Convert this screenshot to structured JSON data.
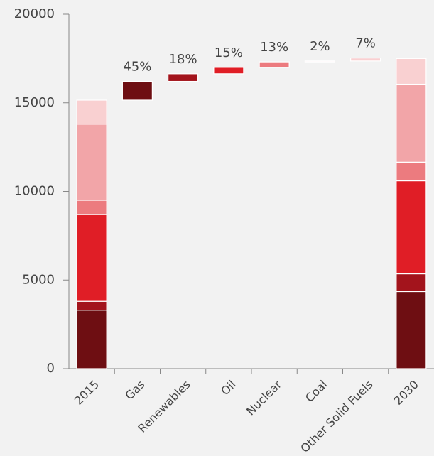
{
  "chart_data": {
    "type": "waterfall",
    "categories": [
      "2015",
      "Gas",
      "Renewables",
      "Oil",
      "Nuclear",
      "Coal",
      "Other Solid Fuels",
      "2030"
    ],
    "series": [
      {
        "color": "#6e0e12",
        "values": [
          3300,
          1060,
          null,
          null,
          null,
          null,
          null,
          4350
        ]
      },
      {
        "color": "#a3141c",
        "values": [
          500,
          null,
          430,
          null,
          null,
          null,
          null,
          1000
        ]
      },
      {
        "color": "#e01e26",
        "values": [
          4900,
          null,
          null,
          360,
          null,
          null,
          null,
          5250
        ]
      },
      {
        "color": "#ec7b7f",
        "values": [
          800,
          null,
          null,
          null,
          310,
          null,
          null,
          1050
        ]
      },
      {
        "color": "#f2a5a8",
        "values": [
          4300,
          null,
          null,
          null,
          null,
          50,
          null,
          4400
        ]
      },
      {
        "color": "#f9d0d1",
        "values": [
          1350,
          null,
          null,
          null,
          null,
          null,
          170,
          1450
        ]
      }
    ],
    "annotations": [
      null,
      "45%",
      "18%",
      "15%",
      "13%",
      "2%",
      "7%",
      null
    ],
    "ylim": [
      0,
      20000
    ],
    "yticks": [
      0,
      5000,
      10000,
      15000,
      20000
    ],
    "grid": false
  }
}
